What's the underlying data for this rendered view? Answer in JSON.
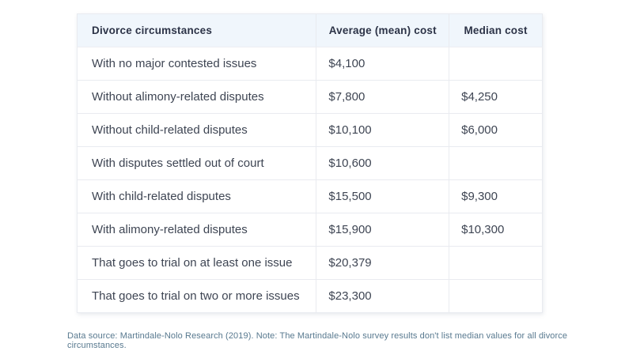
{
  "chart_data": {
    "type": "table",
    "title": "",
    "columns": [
      "Divorce circumstances",
      "Average (mean) cost",
      "Median cost"
    ],
    "rows": [
      [
        "With no major contested issues",
        "$4,100",
        ""
      ],
      [
        "Without alimony-related disputes",
        "$7,800",
        "$4,250"
      ],
      [
        "Without child-related disputes",
        "$10,100",
        "$6,000"
      ],
      [
        "With disputes settled out of court",
        "$10,600",
        ""
      ],
      [
        "With child-related disputes",
        "$15,500",
        "$9,300"
      ],
      [
        "With alimony-related disputes",
        "$15,900",
        "$10,300"
      ],
      [
        "That goes to trial on at least one issue",
        "$20,379",
        ""
      ],
      [
        "That goes to trial on two or more issues",
        "$23,300",
        ""
      ]
    ],
    "note": "Median values are not listed for all circumstances"
  },
  "footer": {
    "text": "Data source: Martindale-Nolo Research (2019). Note: The Martindale-Nolo survey results don't list median values for all divorce circumstances."
  },
  "colors": {
    "header_bg": "#f0f6fc",
    "header_text": "#2c3347",
    "body_text": "#3e4553",
    "border": "#e9ebf0",
    "footer_text": "#58798f",
    "background": "#ffffff"
  }
}
